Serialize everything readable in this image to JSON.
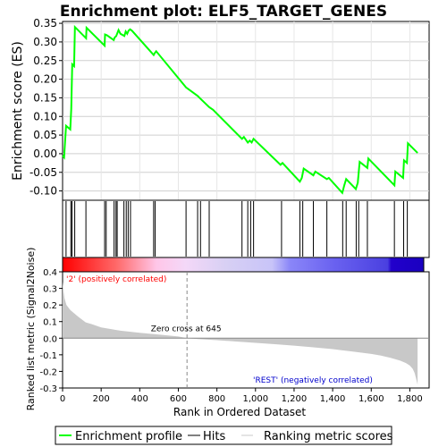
{
  "chart_data": {
    "type": "line",
    "title": "Enrichment plot: ELF5_TARGET_GENES",
    "xlabel": "Rank in Ordered Dataset",
    "top_panel": {
      "ylabel": "Enrichment score (ES)",
      "ylim": [
        -0.125,
        0.355
      ],
      "yticks": [
        -0.1,
        -0.05,
        0.0,
        0.05,
        0.1,
        0.15,
        0.2,
        0.25,
        0.3,
        0.35
      ],
      "ytick_labels": [
        "-0.10",
        "-0.05",
        "0.00",
        "0.05",
        "0.10",
        "0.15",
        "0.20",
        "0.25",
        "0.30",
        "0.35"
      ],
      "grid": true,
      "series": [
        {
          "name": "Enrichment profile",
          "color": "#00ff00",
          "x": [
            0,
            8,
            18,
            40,
            45,
            50,
            60,
            64,
            122,
            124,
            218,
            220,
            230,
            265,
            270,
            278,
            290,
            300,
            320,
            327,
            335,
            342,
            350,
            360,
            472,
            478,
            485,
            640,
            700,
            710,
            760,
            780,
            930,
            940,
            960,
            970,
            980,
            990,
            1130,
            1140,
            1230,
            1240,
            1250,
            1300,
            1310,
            1370,
            1380,
            1450,
            1460,
            1470,
            1520,
            1530,
            1540,
            1580,
            1585,
            1720,
            1725,
            1765,
            1770,
            1785,
            1790,
            1840
          ],
          "y": [
            -0.005,
            -0.01,
            0.075,
            0.065,
            0.12,
            0.24,
            0.235,
            0.34,
            0.31,
            0.338,
            0.29,
            0.32,
            0.318,
            0.305,
            0.312,
            0.316,
            0.332,
            0.322,
            0.316,
            0.328,
            0.322,
            0.33,
            0.334,
            0.33,
            0.265,
            0.27,
            0.275,
            0.178,
            0.155,
            0.15,
            0.125,
            0.118,
            0.04,
            0.045,
            0.03,
            0.035,
            0.03,
            0.04,
            -0.03,
            -0.025,
            -0.075,
            -0.065,
            -0.04,
            -0.058,
            -0.048,
            -0.068,
            -0.065,
            -0.105,
            -0.085,
            -0.068,
            -0.095,
            -0.078,
            -0.022,
            -0.038,
            -0.013,
            -0.085,
            -0.048,
            -0.065,
            -0.018,
            -0.025,
            0.028,
            0.002
          ]
        }
      ]
    },
    "hits_panel": {
      "name": "Hits",
      "hit_ranks": [
        18,
        43,
        49,
        63,
        121,
        218,
        226,
        267,
        277,
        283,
        318,
        330,
        340,
        352,
        472,
        480,
        640,
        700,
        715,
        760,
        930,
        960,
        975,
        990,
        1135,
        1230,
        1245,
        1300,
        1370,
        1452,
        1470,
        1522,
        1535,
        1580,
        1720,
        1768,
        1787
      ]
    },
    "bottom_panel": {
      "ylabel": "Ranked list metric (Signal2Noise)",
      "ylim": [
        -0.3,
        0.4
      ],
      "yticks": [
        -0.3,
        -0.2,
        -0.1,
        0.0,
        0.1,
        0.2,
        0.3,
        0.4
      ],
      "ytick_labels": [
        "-0.3",
        "-0.2",
        "-0.1",
        "0.0",
        "0.1",
        "0.2",
        "0.3",
        "0.4"
      ],
      "x": [
        0,
        5,
        10,
        20,
        40,
        80,
        120,
        150,
        200,
        300,
        400,
        500,
        600,
        645,
        700,
        800,
        900,
        1000,
        1100,
        1200,
        1300,
        1400,
        1500,
        1600,
        1650,
        1700,
        1750,
        1780,
        1800,
        1815,
        1825,
        1832,
        1840
      ],
      "y": [
        0.34,
        0.28,
        0.24,
        0.2,
        0.17,
        0.13,
        0.095,
        0.085,
        0.065,
        0.045,
        0.033,
        0.022,
        0.01,
        0.0,
        -0.005,
        -0.012,
        -0.02,
        -0.028,
        -0.036,
        -0.045,
        -0.055,
        -0.066,
        -0.08,
        -0.095,
        -0.105,
        -0.118,
        -0.135,
        -0.15,
        -0.165,
        -0.185,
        -0.21,
        -0.24,
        -0.28
      ],
      "zero_cross_label": "Zero cross at 645",
      "zero_cross_rank": 645,
      "positive_label": "'2' (positively correlated)",
      "negative_label": "'REST' (negatively correlated)",
      "fill_color": "#c8c8c8",
      "positive_label_color": "#ff0000",
      "negative_label_color": "#0000cc"
    },
    "xlim": [
      0,
      1900
    ],
    "xticks": [
      0,
      200,
      400,
      600,
      800,
      1000,
      1200,
      1400,
      1600,
      1800
    ],
    "xtick_labels": [
      "0",
      "200",
      "400",
      "600",
      "800",
      "1,000",
      "1,200",
      "1,400",
      "1,600",
      "1,800"
    ],
    "dataset_size": 1840,
    "legend": {
      "placement": "bottom",
      "entries": [
        {
          "label": "Enrichment profile",
          "color": "#00ff00"
        },
        {
          "label": "Hits",
          "color": "#000000"
        },
        {
          "label": "Ranking metric scores",
          "color": "#c8c8c8"
        }
      ]
    }
  }
}
